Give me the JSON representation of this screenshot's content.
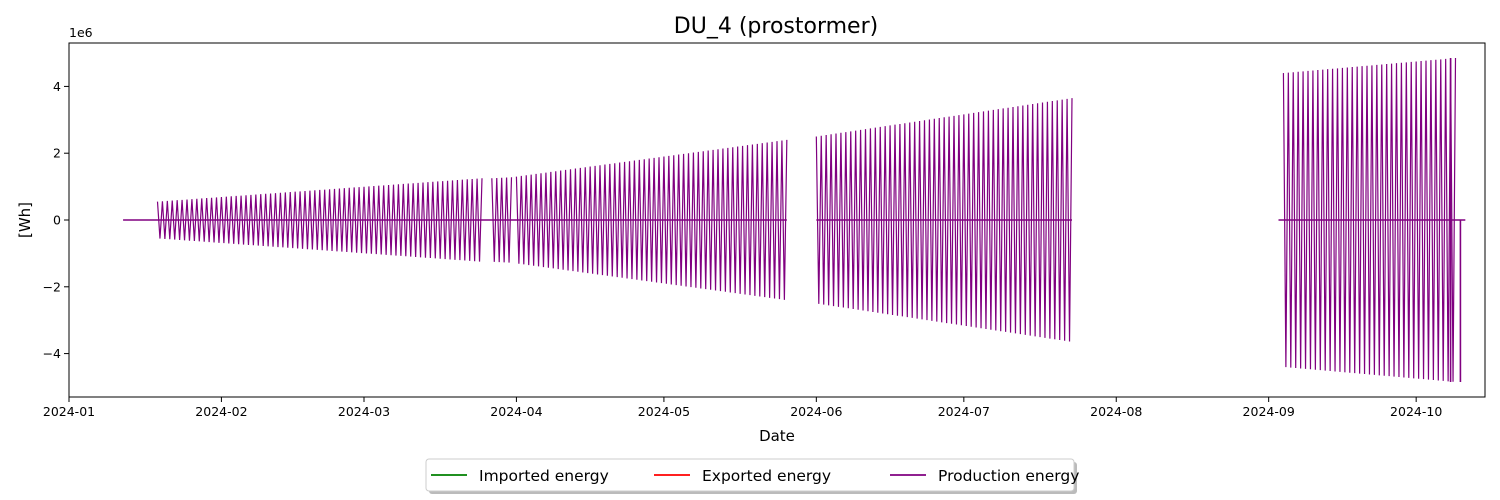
{
  "chart_data": {
    "type": "line",
    "title": "DU_4 (prostormer)",
    "xlabel": "Date",
    "ylabel": "[Wh]",
    "y_scale_label": "1e6",
    "y_scale": 1000000,
    "xlim": [
      "2024-01-01",
      "2024-10-15"
    ],
    "ylim": [
      -5.3,
      5.3
    ],
    "x_ticks": [
      "2024-01",
      "2024-02",
      "2024-03",
      "2024-04",
      "2024-05",
      "2024-06",
      "2024-07",
      "2024-08",
      "2024-09",
      "2024-10"
    ],
    "y_ticks": [
      -4,
      -2,
      0,
      2,
      4
    ],
    "y_tick_labels": [
      "−4",
      "−2",
      "0",
      "2",
      "4"
    ],
    "grid": false,
    "legend_placement": "bottom-center",
    "series": [
      {
        "name": "Imported energy",
        "color": "#008000",
        "segments": []
      },
      {
        "name": "Exported energy",
        "color": "#ff0000",
        "segments": []
      },
      {
        "name": "Production energy",
        "color": "#800080",
        "style": "oscillating",
        "baseline_segments": [
          [
            "2024-01-12",
            "2024-01-19"
          ],
          [
            "2024-01-19",
            "2024-05-26"
          ],
          [
            "2024-06-01",
            "2024-07-23"
          ],
          [
            "2024-09-03",
            "2024-10-11"
          ]
        ],
        "segments": [
          {
            "start": "2024-01-19",
            "end": "2024-03-25",
            "amp_start": 0.55,
            "amp_end": 1.25
          },
          {
            "start": "2024-03-27",
            "end": "2024-03-31",
            "amp_start": 1.25,
            "amp_end": 1.28
          },
          {
            "start": "2024-04-01",
            "end": "2024-05-26",
            "amp_start": 1.3,
            "amp_end": 2.4
          },
          {
            "start": "2024-06-01",
            "end": "2024-07-23",
            "amp_start": 2.5,
            "amp_end": 3.65
          },
          {
            "start": "2024-09-04",
            "end": "2024-10-09",
            "amp_start": 4.4,
            "amp_end": 4.85
          }
        ],
        "spikes": [
          {
            "date": "2024-10-08",
            "max": 4.85,
            "min": -4.85
          },
          {
            "date": "2024-10-10",
            "max": 0,
            "min": -4.85
          }
        ]
      }
    ]
  }
}
